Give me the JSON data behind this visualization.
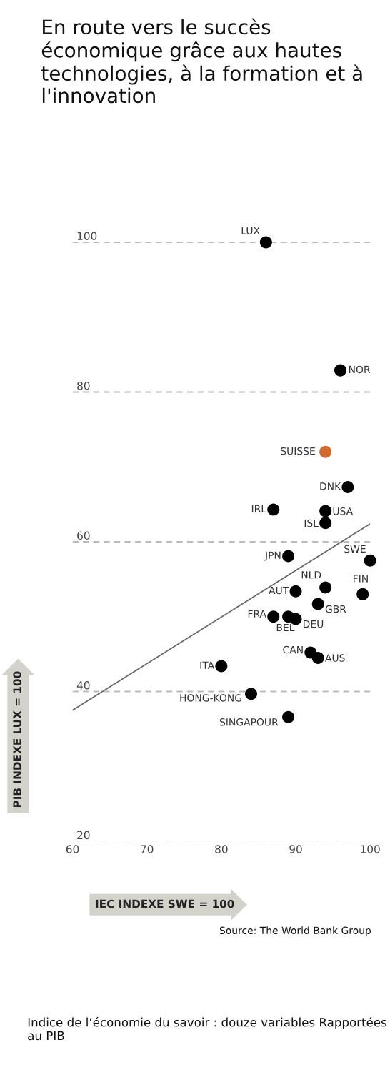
{
  "chart_data": {
    "type": "scatter",
    "title": "En route vers le succès économique grâce aux hautes technologies, à la formation et à l'innovation",
    "xlabel": "IEC INDEXE SWE = 100",
    "ylabel": "PIB INDEXE LUX = 100",
    "series": [
      {
        "marker": "circle",
        "x": [
          86,
          96,
          94,
          97,
          87,
          94,
          94,
          89,
          100,
          94,
          99,
          90,
          93,
          87,
          89,
          90,
          92,
          93,
          80,
          84,
          89
        ],
        "values": [
          100,
          82.9,
          72,
          67.3,
          64.3,
          64.1,
          62.5,
          58.1,
          57.5,
          53.9,
          53,
          53.4,
          51.7,
          50,
          50,
          49.7,
          45.2,
          44.5,
          43.4,
          39.7,
          36.6
        ],
        "colors": [
          "#000000",
          "#000000",
          "#d2692f",
          "#000000",
          "#000000",
          "#000000",
          "#000000",
          "#000000",
          "#000000",
          "#000000",
          "#000000",
          "#000000",
          "#000000",
          "#000000",
          "#000000",
          "#000000",
          "#000000",
          "#000000",
          "#000000",
          "#000000",
          "#000000"
        ]
      },
      {
        "type": "line",
        "x": [
          60,
          100
        ],
        "values": [
          37.5,
          62.4
        ],
        "color": "#666666"
      }
    ],
    "xlim": [
      60,
      100
    ],
    "xticks": [
      60,
      70,
      80,
      90,
      100
    ],
    "ylim": [
      20,
      100
    ],
    "yticks": [
      20,
      40,
      60,
      80,
      100
    ],
    "grid": "y",
    "annotations": [
      {
        "text": "LUX",
        "x": 86,
        "y": 100
      },
      {
        "text": "NOR",
        "x": 96,
        "y": 82.9
      },
      {
        "text": "SUISSE",
        "x": 94,
        "y": 72
      },
      {
        "text": "DNK",
        "x": 97,
        "y": 67.3
      },
      {
        "text": "IRL",
        "x": 87,
        "y": 64.3
      },
      {
        "text": "USA",
        "x": 94,
        "y": 64.1
      },
      {
        "text": "ISL",
        "x": 94,
        "y": 62.5
      },
      {
        "text": "JPN",
        "x": 89,
        "y": 58.1
      },
      {
        "text": "SWE",
        "x": 100,
        "y": 57.5
      },
      {
        "text": "NLD",
        "x": 94,
        "y": 53.9
      },
      {
        "text": "FIN",
        "x": 99,
        "y": 53
      },
      {
        "text": "AUT",
        "x": 90,
        "y": 53.4
      },
      {
        "text": "GBR",
        "x": 93,
        "y": 51.7
      },
      {
        "text": "FRA",
        "x": 87,
        "y": 50
      },
      {
        "text": "BEL",
        "x": 89,
        "y": 50
      },
      {
        "text": "DEU",
        "x": 90,
        "y": 49.7
      },
      {
        "text": "CAN",
        "x": 92,
        "y": 45.2
      },
      {
        "text": "AUS",
        "x": 93,
        "y": 44.5
      },
      {
        "text": "ITA",
        "x": 80,
        "y": 43.4
      },
      {
        "text": "HONG-KONG",
        "x": 84,
        "y": 39.7
      },
      {
        "text": "SINGAPOUR",
        "x": 89,
        "y": 36.6
      },
      "Source: The World Bank Group",
      "Indice de l’économie du savoir : douze variables Rapportées au PIB"
    ]
  }
}
